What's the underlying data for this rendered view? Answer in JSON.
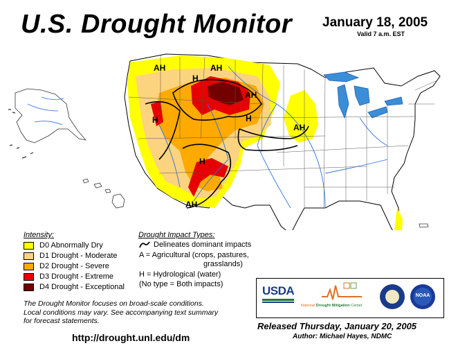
{
  "title": "U.S. Drought Monitor",
  "date": "January 18, 2005",
  "valid": "Valid 7 a.m. EST",
  "region_labels": [
    "AH",
    "AH",
    "H",
    "AH",
    "H",
    "H",
    "AH",
    "H",
    "AH"
  ],
  "intensity": {
    "heading": "Intensity:",
    "items": [
      {
        "label": "D0 Abnormally Dry",
        "color": "#ffff00"
      },
      {
        "label": "D1 Drought - Moderate",
        "color": "#fcd37f"
      },
      {
        "label": "D2 Drought - Severe",
        "color": "#ffaa00"
      },
      {
        "label": "D3 Drought - Extreme",
        "color": "#e60000"
      },
      {
        "label": "D4 Drought - Exceptional",
        "color": "#730000"
      }
    ]
  },
  "impact": {
    "heading": "Drought Impact Types:",
    "delineates": "Delineates dominant impacts",
    "agricultural_1": "A = Agricultural (crops, pastures,",
    "agricultural_2": "grasslands)",
    "hydrological": "H = Hydrological (water)",
    "both": "(No type = Both impacts)"
  },
  "notes": {
    "line1": "The Drought Monitor focuses on broad-scale conditions.",
    "line2": "Local conditions may vary.  See accompanying text summary",
    "line3": "for forecast statements."
  },
  "url": "http://drought.unl.edu/dm",
  "logos": {
    "usda": "USDA",
    "ndmc_prefix": "National",
    "ndmc_name": "Drought Mitigation",
    "ndmc_suffix": "Center",
    "noaa": "NOAA"
  },
  "released": "Released Thursday, January 20, 2005",
  "author": "Author: Michael Hayes, NDMC"
}
